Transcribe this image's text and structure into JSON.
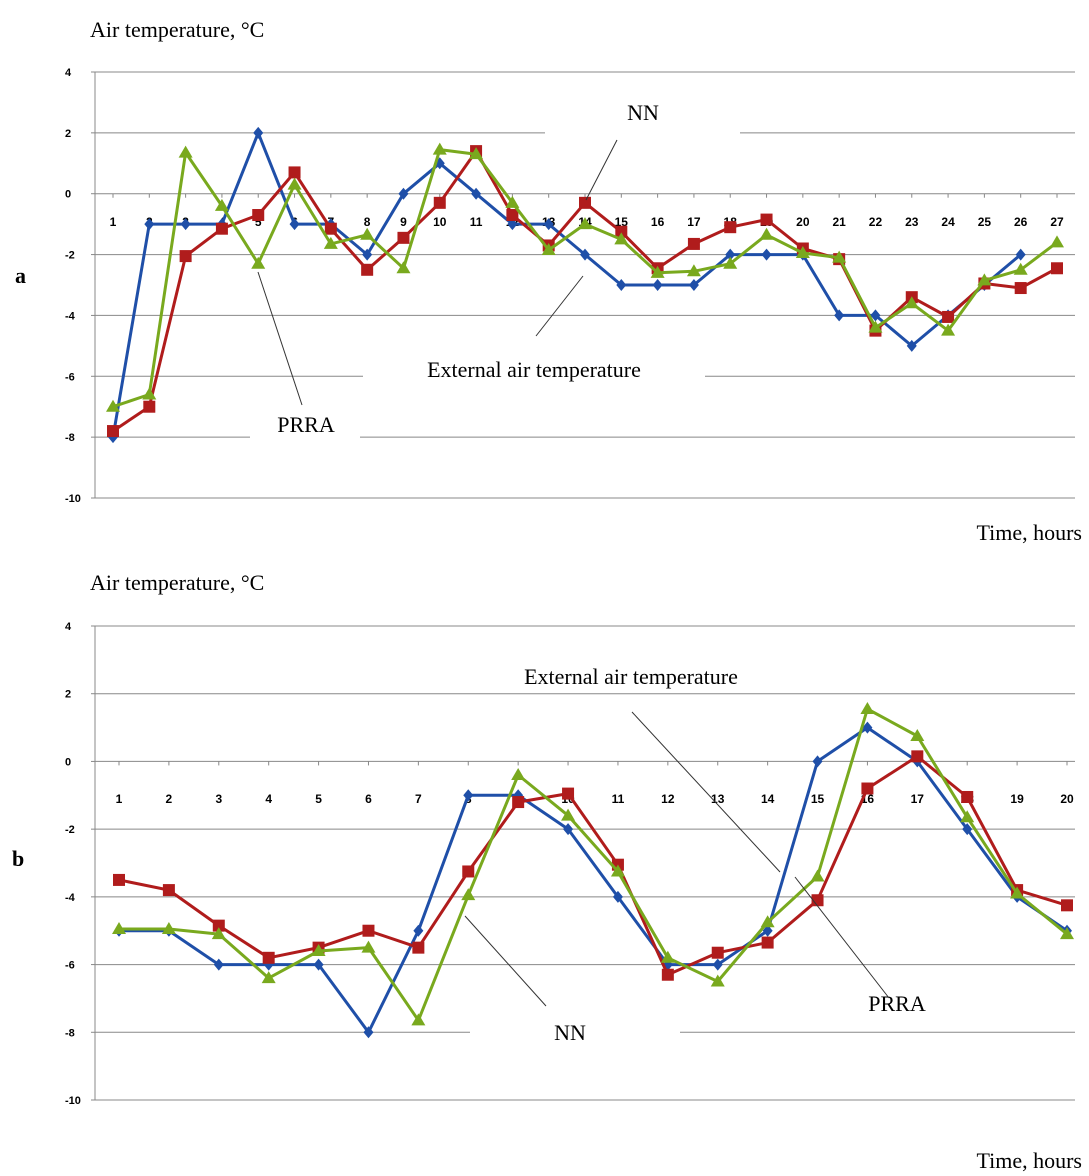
{
  "chart_data": [
    {
      "panel_label": "a",
      "type": "line",
      "ylabel": "Air temperature, °C",
      "xlabel": "Time, hours",
      "ylim": [
        -10,
        4
      ],
      "yticks": [
        4,
        2,
        0,
        -2,
        -4,
        -6,
        -8,
        -10
      ],
      "x": [
        1,
        2,
        3,
        4,
        5,
        6,
        7,
        8,
        9,
        10,
        11,
        12,
        13,
        14,
        15,
        16,
        17,
        18,
        19,
        20,
        21,
        22,
        23,
        24,
        25,
        26,
        27
      ],
      "grid": true,
      "series": [
        {
          "key": "external",
          "color": "#1f4fa8",
          "marker": "diamond",
          "values": [
            -8,
            -1,
            -1,
            -1,
            2,
            -1,
            -1,
            -2,
            0,
            1,
            0,
            -1,
            -1,
            -2,
            -3,
            -3,
            -3,
            -2,
            -2,
            -2,
            -4,
            -4,
            -5,
            -4,
            -3,
            -2,
            null
          ]
        },
        {
          "key": "nn",
          "color": "#b01c1c",
          "marker": "square",
          "values": [
            -7.8,
            -7,
            -2.05,
            -1.15,
            -0.7,
            0.7,
            -1.15,
            -2.5,
            -1.45,
            -0.3,
            1.4,
            -0.7,
            -1.7,
            -0.3,
            -1.25,
            -2.45,
            -1.65,
            -1.1,
            -0.85,
            -1.8,
            -2.15,
            -4.5,
            -3.4,
            -4.05,
            -2.95,
            -3.1,
            -2.45
          ]
        },
        {
          "key": "prra",
          "color": "#79a91e",
          "marker": "triangle",
          "values": [
            -7,
            -6.6,
            1.35,
            -0.4,
            -2.3,
            0.3,
            -1.65,
            -1.35,
            -2.45,
            1.45,
            1.3,
            -0.3,
            -1.85,
            -1,
            -1.5,
            -2.6,
            -2.55,
            -2.3,
            -1.35,
            -1.95,
            -2.1,
            -4.4,
            -3.6,
            -4.5,
            -2.85,
            -2.5,
            -1.6
          ]
        }
      ],
      "annotations": {
        "nn": "NN",
        "external": "External air temperature",
        "prra": "PRRA"
      }
    },
    {
      "panel_label": "b",
      "type": "line",
      "ylabel": "Air temperature, °C",
      "xlabel": "Time, hours",
      "ylim": [
        -10,
        4
      ],
      "yticks": [
        4,
        2,
        0,
        -2,
        -4,
        -6,
        -8,
        -10
      ],
      "x": [
        1,
        2,
        3,
        4,
        5,
        6,
        7,
        8,
        9,
        10,
        11,
        12,
        13,
        14,
        15,
        16,
        17,
        18,
        19,
        20
      ],
      "grid": true,
      "series": [
        {
          "key": "external",
          "color": "#1f4fa8",
          "marker": "diamond",
          "values": [
            -5,
            -5,
            -6,
            -6,
            -6,
            -8,
            -5,
            -1,
            -1,
            -2,
            -4,
            -6,
            -6,
            -5,
            0,
            1,
            0,
            -2,
            -4,
            -5
          ]
        },
        {
          "key": "nn",
          "color": "#b01c1c",
          "marker": "square",
          "values": [
            -3.5,
            -3.8,
            -4.85,
            -5.8,
            -5.5,
            -5,
            -5.5,
            -3.25,
            -1.2,
            -0.95,
            -3.05,
            -6.3,
            -5.65,
            -5.35,
            -4.1,
            -0.8,
            0.15,
            -1.05,
            -3.8,
            -4.25
          ]
        },
        {
          "key": "prra",
          "color": "#79a91e",
          "marker": "triangle",
          "values": [
            -4.95,
            -4.95,
            -5.1,
            -6.4,
            -5.6,
            -5.5,
            -7.65,
            -3.95,
            -0.4,
            -1.6,
            -3.25,
            -5.8,
            -6.5,
            -4.75,
            -3.4,
            1.55,
            0.75,
            -1.65,
            -3.9,
            -5.1
          ]
        }
      ],
      "annotations": {
        "external": "External air temperature",
        "prra": "PRRA",
        "nn": "NN"
      }
    }
  ]
}
